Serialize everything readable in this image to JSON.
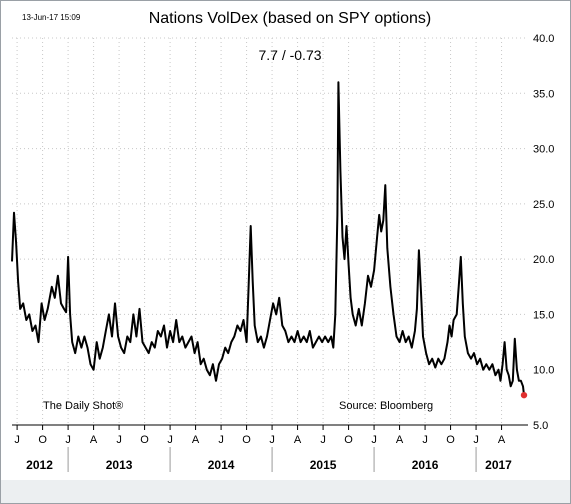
{
  "timestamp": "13-Jun-17 15:09",
  "chart_data": {
    "type": "line",
    "title": "Nations VolDex (based on SPY options)",
    "subtitle": "7.7  /  -0.73",
    "ylim": [
      5.0,
      40.0
    ],
    "yticks": [
      "5.0",
      "10.0",
      "15.0",
      "20.0",
      "25.0",
      "30.0",
      "35.0",
      "40.0"
    ],
    "grid": true,
    "month_ticks": [
      {
        "label": "J",
        "t": 2012.5
      },
      {
        "label": "O",
        "t": 2012.75
      },
      {
        "label": "J",
        "t": 2013.0
      },
      {
        "label": "A",
        "t": 2013.25
      },
      {
        "label": "J",
        "t": 2013.5
      },
      {
        "label": "O",
        "t": 2013.75
      },
      {
        "label": "J",
        "t": 2014.0
      },
      {
        "label": "A",
        "t": 2014.25
      },
      {
        "label": "J",
        "t": 2014.5
      },
      {
        "label": "O",
        "t": 2014.75
      },
      {
        "label": "J",
        "t": 2015.0
      },
      {
        "label": "A",
        "t": 2015.25
      },
      {
        "label": "J",
        "t": 2015.5
      },
      {
        "label": "O",
        "t": 2015.75
      },
      {
        "label": "J",
        "t": 2016.0
      },
      {
        "label": "A",
        "t": 2016.25
      },
      {
        "label": "J",
        "t": 2016.5
      },
      {
        "label": "O",
        "t": 2016.75
      },
      {
        "label": "J",
        "t": 2017.0
      },
      {
        "label": "A",
        "t": 2017.25
      }
    ],
    "year_labels": [
      {
        "label": "2012",
        "t": 2012.72
      },
      {
        "label": "2013",
        "t": 2013.5
      },
      {
        "label": "2014",
        "t": 2014.5
      },
      {
        "label": "2015",
        "t": 2015.5
      },
      {
        "label": "2016",
        "t": 2016.5
      },
      {
        "label": "2017",
        "t": 2017.22
      }
    ],
    "year_boundaries": [
      2013.0,
      2014.0,
      2015.0,
      2016.0,
      2017.0
    ],
    "x_range": [
      2012.45,
      2017.47
    ],
    "series": [
      {
        "color": "#000000",
        "points": [
          [
            2012.45,
            19.8
          ],
          [
            2012.47,
            24.2
          ],
          [
            2012.49,
            21.5
          ],
          [
            2012.51,
            18.0
          ],
          [
            2012.53,
            15.5
          ],
          [
            2012.56,
            16.0
          ],
          [
            2012.59,
            14.5
          ],
          [
            2012.62,
            15.0
          ],
          [
            2012.65,
            13.5
          ],
          [
            2012.68,
            14.0
          ],
          [
            2012.71,
            12.5
          ],
          [
            2012.74,
            16.0
          ],
          [
            2012.77,
            14.5
          ],
          [
            2012.8,
            15.5
          ],
          [
            2012.84,
            17.5
          ],
          [
            2012.87,
            16.5
          ],
          [
            2012.9,
            18.5
          ],
          [
            2012.93,
            16.0
          ],
          [
            2012.96,
            15.5
          ],
          [
            2012.98,
            15.2
          ],
          [
            2013.0,
            20.2
          ],
          [
            2013.02,
            15.0
          ],
          [
            2013.04,
            12.5
          ],
          [
            2013.07,
            11.5
          ],
          [
            2013.1,
            13.0
          ],
          [
            2013.13,
            12.0
          ],
          [
            2013.16,
            13.0
          ],
          [
            2013.19,
            12.0
          ],
          [
            2013.22,
            10.5
          ],
          [
            2013.25,
            10.0
          ],
          [
            2013.28,
            12.5
          ],
          [
            2013.31,
            11.0
          ],
          [
            2013.34,
            12.0
          ],
          [
            2013.37,
            13.5
          ],
          [
            2013.4,
            15.0
          ],
          [
            2013.43,
            13.0
          ],
          [
            2013.46,
            16.0
          ],
          [
            2013.49,
            13.0
          ],
          [
            2013.52,
            12.0
          ],
          [
            2013.55,
            11.5
          ],
          [
            2013.58,
            13.0
          ],
          [
            2013.61,
            12.5
          ],
          [
            2013.64,
            15.0
          ],
          [
            2013.67,
            13.0
          ],
          [
            2013.7,
            15.5
          ],
          [
            2013.73,
            12.5
          ],
          [
            2013.76,
            12.0
          ],
          [
            2013.79,
            11.5
          ],
          [
            2013.82,
            12.5
          ],
          [
            2013.85,
            12.0
          ],
          [
            2013.88,
            13.5
          ],
          [
            2013.91,
            13.0
          ],
          [
            2013.94,
            14.0
          ],
          [
            2013.97,
            12.0
          ],
          [
            2014.0,
            13.5
          ],
          [
            2014.03,
            12.5
          ],
          [
            2014.06,
            14.5
          ],
          [
            2014.09,
            12.5
          ],
          [
            2014.12,
            13.0
          ],
          [
            2014.15,
            12.0
          ],
          [
            2014.18,
            12.5
          ],
          [
            2014.21,
            13.0
          ],
          [
            2014.24,
            11.5
          ],
          [
            2014.27,
            12.5
          ],
          [
            2014.3,
            10.5
          ],
          [
            2014.33,
            11.0
          ],
          [
            2014.36,
            10.0
          ],
          [
            2014.39,
            9.5
          ],
          [
            2014.42,
            10.5
          ],
          [
            2014.45,
            9.0
          ],
          [
            2014.48,
            10.5
          ],
          [
            2014.51,
            11.0
          ],
          [
            2014.54,
            12.0
          ],
          [
            2014.57,
            11.5
          ],
          [
            2014.6,
            12.5
          ],
          [
            2014.63,
            13.0
          ],
          [
            2014.66,
            14.0
          ],
          [
            2014.69,
            13.5
          ],
          [
            2014.72,
            14.5
          ],
          [
            2014.75,
            12.5
          ],
          [
            2014.77,
            17.5
          ],
          [
            2014.79,
            23.0
          ],
          [
            2014.81,
            18.0
          ],
          [
            2014.83,
            14.0
          ],
          [
            2014.86,
            12.5
          ],
          [
            2014.89,
            13.0
          ],
          [
            2014.92,
            12.0
          ],
          [
            2014.95,
            13.0
          ],
          [
            2014.98,
            14.5
          ],
          [
            2015.01,
            16.0
          ],
          [
            2015.04,
            15.0
          ],
          [
            2015.07,
            16.5
          ],
          [
            2015.1,
            14.0
          ],
          [
            2015.13,
            13.5
          ],
          [
            2015.16,
            12.5
          ],
          [
            2015.19,
            13.0
          ],
          [
            2015.22,
            12.5
          ],
          [
            2015.25,
            13.5
          ],
          [
            2015.28,
            12.5
          ],
          [
            2015.31,
            13.0
          ],
          [
            2015.34,
            12.5
          ],
          [
            2015.37,
            13.5
          ],
          [
            2015.4,
            12.0
          ],
          [
            2015.43,
            12.5
          ],
          [
            2015.46,
            13.0
          ],
          [
            2015.49,
            12.5
          ],
          [
            2015.52,
            13.0
          ],
          [
            2015.55,
            12.5
          ],
          [
            2015.58,
            13.0
          ],
          [
            2015.6,
            12.0
          ],
          [
            2015.62,
            15.0
          ],
          [
            2015.64,
            24.0
          ],
          [
            2015.65,
            36.0
          ],
          [
            2015.67,
            28.0
          ],
          [
            2015.69,
            22.0
          ],
          [
            2015.71,
            20.0
          ],
          [
            2015.73,
            23.0
          ],
          [
            2015.75,
            19.5
          ],
          [
            2015.77,
            16.5
          ],
          [
            2015.79,
            15.0
          ],
          [
            2015.82,
            14.0
          ],
          [
            2015.85,
            15.5
          ],
          [
            2015.88,
            14.0
          ],
          [
            2015.91,
            16.0
          ],
          [
            2015.94,
            18.5
          ],
          [
            2015.97,
            17.5
          ],
          [
            2016.0,
            19.0
          ],
          [
            2016.03,
            22.0
          ],
          [
            2016.05,
            24.0
          ],
          [
            2016.07,
            22.5
          ],
          [
            2016.09,
            23.5
          ],
          [
            2016.11,
            26.7
          ],
          [
            2016.13,
            21.0
          ],
          [
            2016.16,
            17.5
          ],
          [
            2016.19,
            15.0
          ],
          [
            2016.22,
            13.0
          ],
          [
            2016.25,
            12.5
          ],
          [
            2016.28,
            13.5
          ],
          [
            2016.31,
            12.5
          ],
          [
            2016.34,
            13.0
          ],
          [
            2016.37,
            12.0
          ],
          [
            2016.4,
            13.5
          ],
          [
            2016.42,
            15.5
          ],
          [
            2016.44,
            20.8
          ],
          [
            2016.46,
            17.0
          ],
          [
            2016.48,
            13.0
          ],
          [
            2016.51,
            11.5
          ],
          [
            2016.54,
            10.5
          ],
          [
            2016.57,
            11.0
          ],
          [
            2016.6,
            10.2
          ],
          [
            2016.63,
            11.0
          ],
          [
            2016.66,
            10.5
          ],
          [
            2016.69,
            11.0
          ],
          [
            2016.72,
            12.5
          ],
          [
            2016.74,
            14.0
          ],
          [
            2016.76,
            13.0
          ],
          [
            2016.78,
            14.5
          ],
          [
            2016.81,
            15.0
          ],
          [
            2016.83,
            17.5
          ],
          [
            2016.85,
            20.2
          ],
          [
            2016.87,
            16.0
          ],
          [
            2016.89,
            13.0
          ],
          [
            2016.92,
            11.5
          ],
          [
            2016.95,
            11.0
          ],
          [
            2016.98,
            11.5
          ],
          [
            2017.01,
            10.5
          ],
          [
            2017.04,
            11.0
          ],
          [
            2017.07,
            10.0
          ],
          [
            2017.1,
            10.5
          ],
          [
            2017.13,
            10.0
          ],
          [
            2017.16,
            10.5
          ],
          [
            2017.19,
            9.5
          ],
          [
            2017.22,
            10.0
          ],
          [
            2017.24,
            9.0
          ],
          [
            2017.26,
            10.5
          ],
          [
            2017.28,
            12.5
          ],
          [
            2017.3,
            10.0
          ],
          [
            2017.32,
            9.5
          ],
          [
            2017.34,
            8.5
          ],
          [
            2017.36,
            9.0
          ],
          [
            2017.38,
            12.8
          ],
          [
            2017.4,
            10.0
          ],
          [
            2017.42,
            9.0
          ],
          [
            2017.44,
            9.0
          ],
          [
            2017.46,
            8.5
          ],
          [
            2017.47,
            7.7
          ]
        ]
      }
    ],
    "last_point_color": "#e03030",
    "annotations": [
      "The Daily Shot®",
      "Source: Bloomberg"
    ]
  }
}
